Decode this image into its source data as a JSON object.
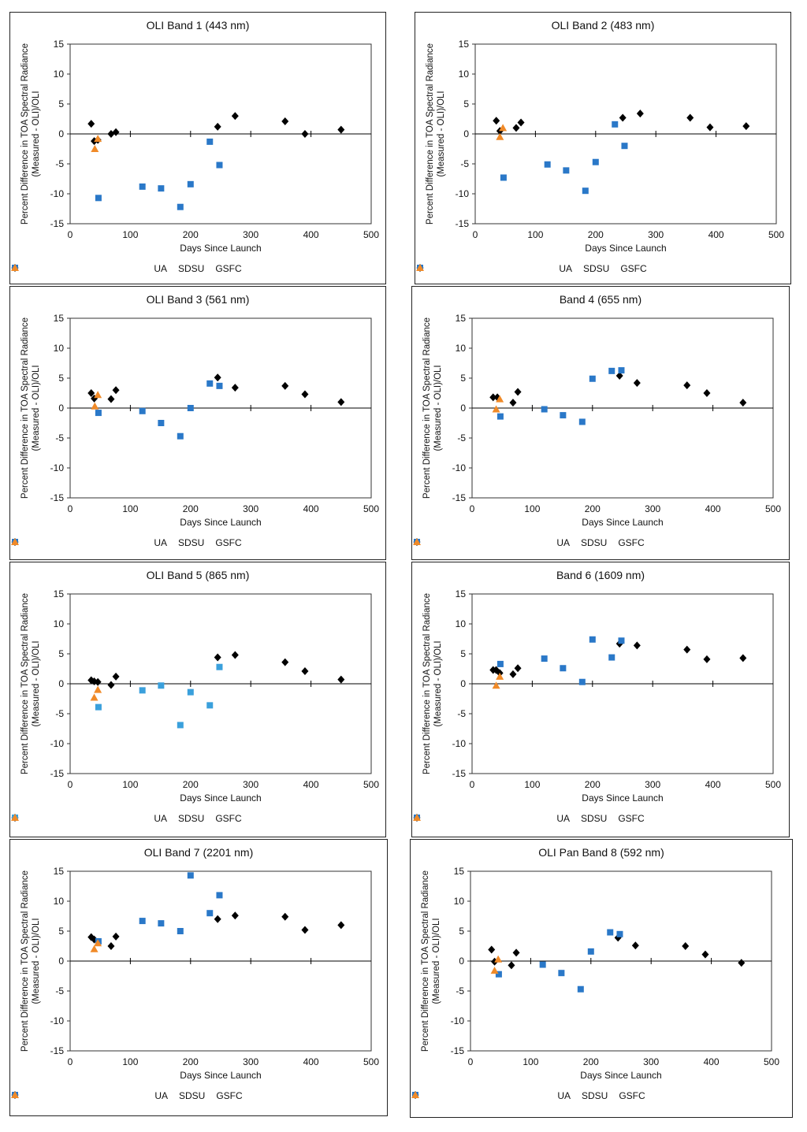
{
  "series_names": [
    "UA",
    "SDSU",
    "GSFC"
  ],
  "colors": {
    "UA": "#000000",
    "SDSU": "#2a78c8",
    "SDSU_light": "#3aa0dc",
    "GSFC": "#f08a28"
  },
  "chart_data": [
    {
      "type": "scatter",
      "title": "OLI Band 1 (443 nm)",
      "xlabel": "Days Since Launch",
      "ylabel": [
        "Percent Difference in TOA Spectral Radiance",
        "(Measured - OLI)/OLI"
      ],
      "xlim": [
        0,
        500
      ],
      "ylim": [
        -15,
        15
      ],
      "xticks": [
        0,
        100,
        200,
        300,
        400,
        500
      ],
      "yticks": [
        15,
        10,
        5,
        0,
        -5,
        -10,
        -15
      ],
      "series": [
        {
          "name": "UA",
          "x": [
            35,
            40,
            46,
            68,
            76,
            245,
            274,
            357,
            390,
            450
          ],
          "y": [
            1.7,
            -1.2,
            -1.0,
            0.0,
            0.3,
            1.2,
            3.0,
            2.1,
            0.0,
            0.7
          ]
        },
        {
          "name": "SDSU",
          "x": [
            47,
            120,
            151,
            183,
            200,
            232,
            248
          ],
          "y": [
            -10.7,
            -8.8,
            -9.1,
            -12.2,
            -8.4,
            -1.3,
            -5.2
          ]
        },
        {
          "name": "GSFC",
          "x": [
            41,
            46
          ],
          "y": [
            -2.5,
            -0.8
          ]
        }
      ]
    },
    {
      "type": "scatter",
      "title": "OLI Band 2 (483 nm)",
      "xlabel": "Days Since Launch",
      "ylabel": [
        "Percent Difference in TOA Spectral Radiance",
        "(Measured - OLI)/OLI"
      ],
      "xlim": [
        0,
        500
      ],
      "ylim": [
        -15,
        15
      ],
      "xticks": [
        0,
        100,
        200,
        300,
        400,
        500
      ],
      "yticks": [
        15,
        10,
        5,
        0,
        -5,
        -10,
        -15
      ],
      "series": [
        {
          "name": "UA",
          "x": [
            35,
            41,
            68,
            76,
            245,
            274,
            357,
            390,
            450
          ],
          "y": [
            2.2,
            0.5,
            1.0,
            1.9,
            2.7,
            3.4,
            2.7,
            1.1,
            1.3
          ]
        },
        {
          "name": "SDSU",
          "x": [
            47,
            120,
            151,
            183,
            200,
            232,
            248
          ],
          "y": [
            -7.3,
            -5.1,
            -6.1,
            -9.5,
            -4.7,
            1.6,
            -2.0
          ]
        },
        {
          "name": "GSFC",
          "x": [
            41,
            46
          ],
          "y": [
            -0.5,
            1.0
          ]
        }
      ]
    },
    {
      "type": "scatter",
      "title": "OLI Band 3 (561 nm)",
      "xlabel": "Days Since Launch",
      "ylabel": [
        "Percent Difference in TOA Spectral Radiance",
        "(Measured - OLI)/OLI"
      ],
      "xlim": [
        0,
        500
      ],
      "ylim": [
        -15,
        15
      ],
      "xticks": [
        0,
        100,
        200,
        300,
        400,
        500
      ],
      "yticks": [
        15,
        10,
        5,
        0,
        -5,
        -10,
        -15
      ],
      "series": [
        {
          "name": "UA",
          "x": [
            35,
            40,
            68,
            76,
            245,
            274,
            357,
            390,
            450
          ],
          "y": [
            2.5,
            1.6,
            1.5,
            3.0,
            5.1,
            3.4,
            3.7,
            2.3,
            1.0
          ]
        },
        {
          "name": "SDSU",
          "x": [
            47,
            120,
            151,
            183,
            200,
            232,
            248
          ],
          "y": [
            -0.8,
            -0.5,
            -2.5,
            -4.7,
            0.0,
            4.1,
            3.7
          ]
        },
        {
          "name": "GSFC",
          "x": [
            41,
            46
          ],
          "y": [
            0.3,
            2.2
          ]
        }
      ]
    },
    {
      "type": "scatter",
      "title": "Band 4 (655 nm)",
      "xlabel": "Days Since Launch",
      "ylabel": [
        "Percent Difference in TOA Spectral Radiance",
        "(Measured - OLI)/OLI"
      ],
      "xlim": [
        0,
        500
      ],
      "ylim": [
        -15,
        15
      ],
      "xticks": [
        0,
        100,
        200,
        300,
        400,
        500
      ],
      "yticks": [
        15,
        10,
        5,
        0,
        -5,
        -10,
        -15
      ],
      "series": [
        {
          "name": "UA",
          "x": [
            35,
            42,
            68,
            76,
            245,
            274,
            357,
            390,
            450
          ],
          "y": [
            1.8,
            1.8,
            0.9,
            2.7,
            5.4,
            4.2,
            3.8,
            2.5,
            0.9
          ]
        },
        {
          "name": "SDSU",
          "x": [
            47,
            120,
            151,
            183,
            200,
            232,
            248
          ],
          "y": [
            -1.4,
            -0.2,
            -1.2,
            -2.3,
            4.9,
            6.2,
            6.3
          ]
        },
        {
          "name": "GSFC",
          "x": [
            40,
            46
          ],
          "y": [
            -0.2,
            1.5
          ]
        }
      ]
    },
    {
      "type": "scatter",
      "title": "OLI Band 5 (865 nm)",
      "xlabel": "Days Since Launch",
      "ylabel": [
        "Percent Difference in TOA Spectral Radiance",
        "(Measured - OLI)/OLI"
      ],
      "xlim": [
        0,
        500
      ],
      "ylim": [
        -15,
        15
      ],
      "xticks": [
        0,
        100,
        200,
        300,
        400,
        500
      ],
      "yticks": [
        15,
        10,
        5,
        0,
        -5,
        -10,
        -15
      ],
      "light_sdsu": true,
      "series": [
        {
          "name": "UA",
          "x": [
            35,
            40,
            46,
            68,
            76,
            245,
            274,
            357,
            390,
            450
          ],
          "y": [
            0.6,
            0.4,
            0.3,
            -0.2,
            1.2,
            4.4,
            4.8,
            3.6,
            2.1,
            0.7
          ]
        },
        {
          "name": "SDSU",
          "x": [
            47,
            120,
            151,
            183,
            200,
            232,
            248
          ],
          "y": [
            -3.9,
            -1.1,
            -0.3,
            -6.9,
            -1.4,
            -3.6,
            2.8
          ]
        },
        {
          "name": "GSFC",
          "x": [
            40,
            46
          ],
          "y": [
            -2.3,
            -1.0
          ]
        }
      ]
    },
    {
      "type": "scatter",
      "title": "Band 6 (1609 nm)",
      "xlabel": "Days Since Launch",
      "ylabel": [
        "Percent Difference in TOA Spectral Radiance",
        "(Measured - OLI)/OLI"
      ],
      "xlim": [
        0,
        500
      ],
      "ylim": [
        -15,
        15
      ],
      "xticks": [
        0,
        100,
        200,
        300,
        400,
        500
      ],
      "yticks": [
        15,
        10,
        5,
        0,
        -5,
        -10,
        -15
      ],
      "series": [
        {
          "name": "UA",
          "x": [
            35,
            40,
            46,
            68,
            76,
            245,
            274,
            357,
            390,
            450
          ],
          "y": [
            2.3,
            2.3,
            1.8,
            1.6,
            2.6,
            6.7,
            6.4,
            5.7,
            4.1,
            4.3
          ]
        },
        {
          "name": "SDSU",
          "x": [
            47,
            120,
            151,
            183,
            200,
            232,
            248
          ],
          "y": [
            3.3,
            4.2,
            2.6,
            0.3,
            7.4,
            4.4,
            7.2
          ]
        },
        {
          "name": "GSFC",
          "x": [
            40,
            46
          ],
          "y": [
            -0.3,
            1.2
          ]
        }
      ]
    },
    {
      "type": "scatter",
      "title": "OLI Band 7 (2201 nm)",
      "xlabel": "Days Since Launch",
      "ylabel": [
        "Percent Difference in TOA Spectral Radiance",
        "(Measured - OLI)/OLI"
      ],
      "xlim": [
        0,
        500
      ],
      "ylim": [
        -15,
        15
      ],
      "xticks": [
        0,
        100,
        200,
        300,
        400,
        500
      ],
      "yticks": [
        15,
        10,
        5,
        0,
        -5,
        -10,
        -15
      ],
      "series": [
        {
          "name": "UA",
          "x": [
            35,
            40,
            68,
            76,
            245,
            274,
            357,
            390,
            450
          ],
          "y": [
            4.0,
            3.6,
            2.5,
            4.1,
            7.0,
            7.6,
            7.4,
            5.2,
            6.0
          ]
        },
        {
          "name": "SDSU",
          "x": [
            47,
            120,
            151,
            183,
            200,
            232,
            248
          ],
          "y": [
            3.3,
            6.7,
            6.3,
            5.0,
            14.3,
            8.0,
            11.0
          ]
        },
        {
          "name": "GSFC",
          "x": [
            40,
            46
          ],
          "y": [
            2.0,
            3.0
          ]
        }
      ]
    },
    {
      "type": "scatter",
      "title": "OLI Pan Band 8 (592 nm)",
      "xlabel": "Days Since Launch",
      "ylabel": [
        "Percent Difference in TOA Spectral Radiance",
        "(Measured - OLI)/OLI"
      ],
      "xlim": [
        0,
        500
      ],
      "ylim": [
        -15,
        15
      ],
      "xticks": [
        0,
        100,
        200,
        300,
        400,
        500
      ],
      "yticks": [
        15,
        10,
        5,
        0,
        -5,
        -10,
        -15
      ],
      "series": [
        {
          "name": "UA",
          "x": [
            35,
            40,
            68,
            76,
            245,
            274,
            357,
            390,
            450
          ],
          "y": [
            1.9,
            -0.1,
            -0.7,
            1.4,
            3.9,
            2.6,
            2.5,
            1.1,
            -0.3
          ]
        },
        {
          "name": "SDSU",
          "x": [
            47,
            120,
            151,
            183,
            200,
            232,
            248
          ],
          "y": [
            -2.2,
            -0.6,
            -2.0,
            -4.7,
            1.6,
            4.8,
            4.5
          ]
        },
        {
          "name": "GSFC",
          "x": [
            40,
            46
          ],
          "y": [
            -1.6,
            0.3
          ]
        }
      ]
    }
  ]
}
